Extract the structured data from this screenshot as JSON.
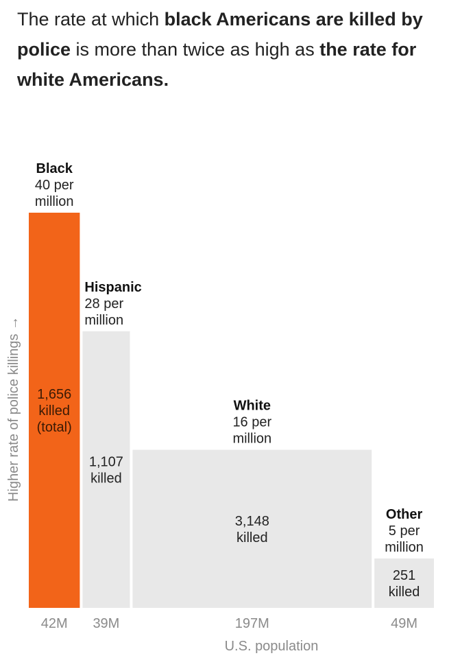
{
  "headline": {
    "part1": "The rate at which ",
    "bold1": "black Americans are killed by police",
    "part2": " is more than twice as high as ",
    "bold2": "the rate for white Americans."
  },
  "colors": {
    "accent": "#f26419",
    "neutral": "#e8e8e8",
    "text": "#222222",
    "muted": "#8a8a8a"
  },
  "chart_data": {
    "type": "bar",
    "variant": "variable-width (marimekko) bars: width = population, height = rate",
    "title": "",
    "xlabel": "U.S. population",
    "ylabel": "Higher rate of police killings →",
    "categories": [
      "Black",
      "Hispanic",
      "White",
      "Other"
    ],
    "rate_per_million": [
      40,
      28,
      16,
      5
    ],
    "rate_labels": [
      [
        "40 per",
        "million"
      ],
      [
        "28 per",
        "million"
      ],
      [
        "16 per",
        "million"
      ],
      [
        "5 per",
        "million"
      ]
    ],
    "killed": [
      1656,
      1107,
      3148,
      251
    ],
    "killed_labels": [
      [
        "1,656",
        "killed",
        "(total)"
      ],
      [
        "1,107",
        "killed"
      ],
      [
        "3,148",
        "killed"
      ],
      [
        "251",
        "killed"
      ]
    ],
    "population_millions": [
      42,
      39,
      197,
      49
    ],
    "population_labels": [
      "42M",
      "39M",
      "197M",
      "49M"
    ],
    "highlight": "Black",
    "ylim": [
      0,
      40
    ]
  }
}
